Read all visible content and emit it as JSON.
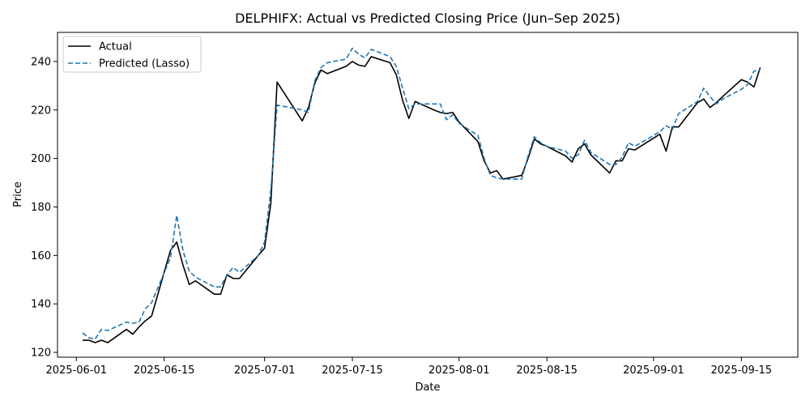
{
  "chart_data": {
    "type": "line",
    "title": "DELPHIFX: Actual vs Predicted Closing Price (Jun–Sep 2025)",
    "xlabel": "Date",
    "ylabel": "Price",
    "xlim": [
      "2025-05-29",
      "2025-09-24"
    ],
    "ylim": [
      118,
      252
    ],
    "x_ticks": [
      "2025-06-01",
      "2025-06-15",
      "2025-07-01",
      "2025-07-15",
      "2025-08-01",
      "2025-08-15",
      "2025-09-01",
      "2025-09-15"
    ],
    "y_ticks": [
      120,
      140,
      160,
      180,
      200,
      220,
      240
    ],
    "grid": false,
    "legend": "upper left",
    "series": [
      {
        "name": "Actual",
        "color": "#000000",
        "style": "solid",
        "x": [
          "2025-06-02",
          "2025-06-03",
          "2025-06-04",
          "2025-06-05",
          "2025-06-06",
          "2025-06-09",
          "2025-06-10",
          "2025-06-11",
          "2025-06-12",
          "2025-06-13",
          "2025-06-16",
          "2025-06-17",
          "2025-06-18",
          "2025-06-19",
          "2025-06-20",
          "2025-06-23",
          "2025-06-24",
          "2025-06-25",
          "2025-06-26",
          "2025-06-27",
          "2025-06-30",
          "2025-07-01",
          "2025-07-02",
          "2025-07-03",
          "2025-07-07",
          "2025-07-08",
          "2025-07-09",
          "2025-07-10",
          "2025-07-11",
          "2025-07-14",
          "2025-07-15",
          "2025-07-16",
          "2025-07-17",
          "2025-07-18",
          "2025-07-21",
          "2025-07-22",
          "2025-07-23",
          "2025-07-24",
          "2025-07-25",
          "2025-07-28",
          "2025-07-29",
          "2025-07-30",
          "2025-07-31",
          "2025-08-01",
          "2025-08-04",
          "2025-08-05",
          "2025-08-06",
          "2025-08-07",
          "2025-08-08",
          "2025-08-11",
          "2025-08-12",
          "2025-08-13",
          "2025-08-14",
          "2025-08-15",
          "2025-08-18",
          "2025-08-19",
          "2025-08-20",
          "2025-08-21",
          "2025-08-22",
          "2025-08-25",
          "2025-08-26",
          "2025-08-27",
          "2025-08-28",
          "2025-08-29",
          "2025-09-02",
          "2025-09-03",
          "2025-09-04",
          "2025-09-05",
          "2025-09-08",
          "2025-09-09",
          "2025-09-10",
          "2025-09-11",
          "2025-09-12",
          "2025-09-15",
          "2025-09-16",
          "2025-09-17",
          "2025-09-18"
        ],
        "values": [
          125.0,
          125.0,
          124.0,
          125.0,
          124.0,
          129.5,
          127.5,
          130.5,
          133.0,
          135.0,
          162.0,
          165.5,
          156.0,
          148.0,
          149.5,
          144.0,
          144.0,
          152.0,
          150.5,
          150.5,
          160.0,
          163.0,
          181.5,
          231.5,
          215.5,
          221.0,
          231.0,
          236.5,
          235.0,
          238.0,
          240.0,
          238.5,
          238.0,
          242.0,
          239.5,
          234.5,
          224.0,
          216.5,
          223.5,
          220.0,
          219.0,
          218.5,
          219.0,
          215.0,
          207.0,
          199.0,
          194.0,
          195.0,
          191.5,
          193.0,
          200.0,
          208.0,
          206.0,
          205.0,
          201.0,
          198.5,
          204.0,
          206.0,
          201.5,
          194.0,
          199.0,
          199.0,
          204.0,
          203.5,
          210.0,
          203.0,
          213.0,
          213.0,
          223.0,
          224.5,
          221.0,
          223.0,
          225.5,
          232.5,
          231.5,
          229.5,
          237.5
        ]
      },
      {
        "name": "Predicted (Lasso)",
        "color": "#1f77b4",
        "style": "dashed",
        "x": [
          "2025-06-02",
          "2025-06-03",
          "2025-06-04",
          "2025-06-05",
          "2025-06-06",
          "2025-06-09",
          "2025-06-10",
          "2025-06-11",
          "2025-06-12",
          "2025-06-13",
          "2025-06-16",
          "2025-06-17",
          "2025-06-18",
          "2025-06-19",
          "2025-06-20",
          "2025-06-23",
          "2025-06-24",
          "2025-06-25",
          "2025-06-26",
          "2025-06-27",
          "2025-06-30",
          "2025-07-01",
          "2025-07-02",
          "2025-07-03",
          "2025-07-07",
          "2025-07-08",
          "2025-07-09",
          "2025-07-10",
          "2025-07-11",
          "2025-07-14",
          "2025-07-15",
          "2025-07-16",
          "2025-07-17",
          "2025-07-18",
          "2025-07-21",
          "2025-07-22",
          "2025-07-23",
          "2025-07-24",
          "2025-07-25",
          "2025-07-28",
          "2025-07-29",
          "2025-07-30",
          "2025-07-31",
          "2025-08-01",
          "2025-08-04",
          "2025-08-05",
          "2025-08-06",
          "2025-08-07",
          "2025-08-08",
          "2025-08-11",
          "2025-08-12",
          "2025-08-13",
          "2025-08-14",
          "2025-08-15",
          "2025-08-18",
          "2025-08-19",
          "2025-08-20",
          "2025-08-21",
          "2025-08-22",
          "2025-08-25",
          "2025-08-26",
          "2025-08-27",
          "2025-08-28",
          "2025-08-29",
          "2025-09-02",
          "2025-09-03",
          "2025-09-04",
          "2025-09-05",
          "2025-09-08",
          "2025-09-09",
          "2025-09-10",
          "2025-09-11",
          "2025-09-12",
          "2025-09-15",
          "2025-09-16",
          "2025-09-17",
          "2025-09-18"
        ],
        "values": [
          128.0,
          126.0,
          125.5,
          129.5,
          129.0,
          132.5,
          132.0,
          132.5,
          138.0,
          140.5,
          159.0,
          176.5,
          162.0,
          153.5,
          151.0,
          147.0,
          147.0,
          152.0,
          155.0,
          153.0,
          160.0,
          165.5,
          187.0,
          222.0,
          220.0,
          219.0,
          232.0,
          237.5,
          239.5,
          241.0,
          245.5,
          243.0,
          241.5,
          245.0,
          242.0,
          238.0,
          229.0,
          220.5,
          222.5,
          222.5,
          222.5,
          216.0,
          218.0,
          214.5,
          209.5,
          200.0,
          193.0,
          192.0,
          191.5,
          191.5,
          201.0,
          209.0,
          206.5,
          205.0,
          203.0,
          200.0,
          201.5,
          207.5,
          202.5,
          197.5,
          197.5,
          200.5,
          206.5,
          205.0,
          211.0,
          213.5,
          212.0,
          218.5,
          223.5,
          229.0,
          225.5,
          222.5,
          224.5,
          228.5,
          230.5,
          236.0,
          236.5
        ]
      }
    ]
  }
}
